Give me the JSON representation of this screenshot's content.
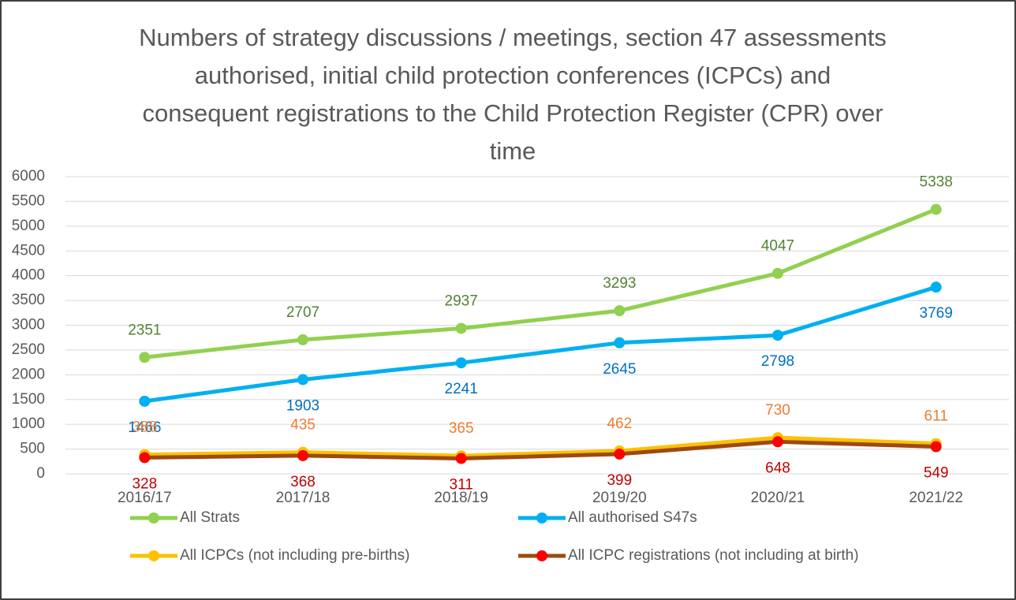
{
  "chart_data": {
    "type": "line",
    "title": "Numbers of strategy discussions / meetings, section 47 assessments authorised, initial child protection conferences (ICPCs) and consequent registrations to the Child Protection Register (CPR) over time",
    "categories": [
      "2016/17",
      "2017/18",
      "2018/19",
      "2019/20",
      "2020/21",
      "2021/22"
    ],
    "series": [
      {
        "name": "All Strats",
        "color": "#92d050",
        "marker_color": "#92d050",
        "label_color": "#548235",
        "label_position": "above",
        "values": [
          2351,
          2707,
          2937,
          3293,
          4047,
          5338
        ]
      },
      {
        "name": "All authorised S47s",
        "color": "#00b0f0",
        "marker_color": "#00b0f0",
        "label_color": "#0070c0",
        "label_position": "below",
        "values": [
          1466,
          1903,
          2241,
          2645,
          2798,
          3769
        ]
      },
      {
        "name": "All ICPCs (not including pre-births)",
        "color": "#ffc000",
        "marker_color": "#ffc000",
        "label_color": "#ed7d31",
        "label_position": "above",
        "values": [
          388,
          435,
          365,
          462,
          730,
          611
        ]
      },
      {
        "name": "All ICPC registrations (not including at birth)",
        "color": "#9c4a12",
        "marker_color": "#ff0000",
        "label_color": "#c00000",
        "label_position": "below",
        "values": [
          328,
          368,
          311,
          399,
          648,
          549
        ]
      }
    ],
    "ylim": [
      0,
      6000
    ],
    "yticks": [
      0,
      500,
      1000,
      1500,
      2000,
      2500,
      3000,
      3500,
      4000,
      4500,
      5000,
      5500,
      6000
    ],
    "grid": true,
    "legend": "bottom"
  }
}
